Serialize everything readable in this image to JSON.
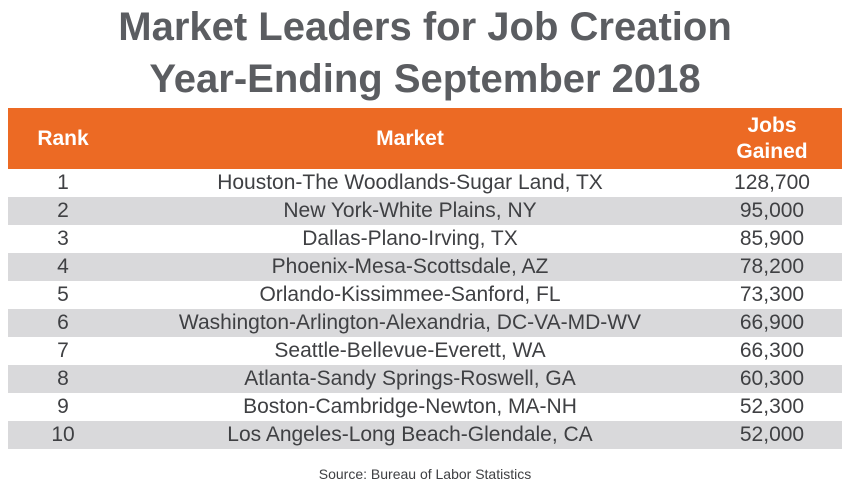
{
  "title_line1": "Market Leaders for Job Creation",
  "title_line2": "Year-Ending September 2018",
  "source": "Source: Bureau of Labor Statistics",
  "colors": {
    "header_bg": "#ec6a24",
    "stripe": "#d9d9db",
    "title": "#5b5d61"
  },
  "chart_data": {
    "type": "table",
    "columns": [
      "Rank",
      "Market",
      "Jobs Gained"
    ],
    "rows": [
      {
        "rank": "1",
        "market": "Houston-The Woodlands-Sugar Land, TX",
        "jobs": "128,700"
      },
      {
        "rank": "2",
        "market": "New York-White Plains, NY",
        "jobs": "95,000"
      },
      {
        "rank": "3",
        "market": "Dallas-Plano-Irving, TX",
        "jobs": "85,900"
      },
      {
        "rank": "4",
        "market": "Phoenix-Mesa-Scottsdale, AZ",
        "jobs": "78,200"
      },
      {
        "rank": "5",
        "market": "Orlando-Kissimmee-Sanford, FL",
        "jobs": "73,300"
      },
      {
        "rank": "6",
        "market": "Washington-Arlington-Alexandria, DC-VA-MD-WV",
        "jobs": "66,900"
      },
      {
        "rank": "7",
        "market": "Seattle-Bellevue-Everett, WA",
        "jobs": "66,300"
      },
      {
        "rank": "8",
        "market": "Atlanta-Sandy Springs-Roswell, GA",
        "jobs": "60,300"
      },
      {
        "rank": "9",
        "market": "Boston-Cambridge-Newton, MA-NH",
        "jobs": "52,300"
      },
      {
        "rank": "10",
        "market": "Los Angeles-Long Beach-Glendale, CA",
        "jobs": "52,000"
      }
    ]
  }
}
